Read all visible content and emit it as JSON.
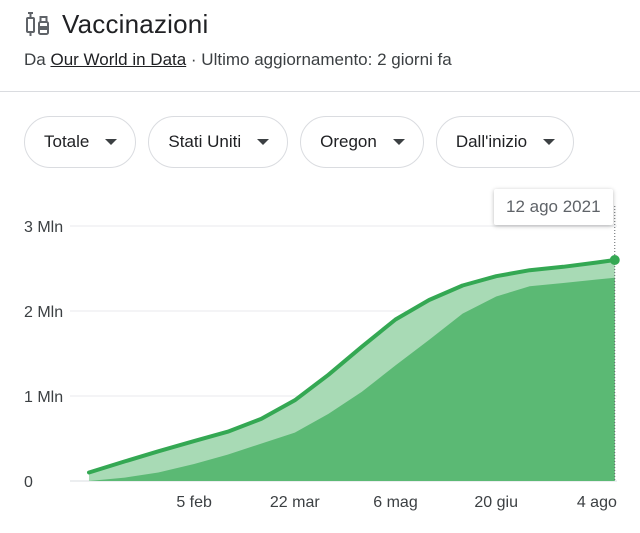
{
  "header": {
    "title": "Vaccinazioni",
    "source_prefix": "Da ",
    "source_link": "Our World in Data",
    "updated": " · Ultimo aggiornamento: 2 giorni fa",
    "icon": "syringe-vial-icon"
  },
  "filters": [
    {
      "label": "Totale",
      "icon": "dropdown-caret-icon"
    },
    {
      "label": "Stati Uniti",
      "icon": "dropdown-caret-icon"
    },
    {
      "label": "Oregon",
      "icon": "dropdown-caret-icon"
    },
    {
      "label": "Dall'inizio",
      "icon": "dropdown-caret-icon"
    }
  ],
  "tooltip": {
    "date": "12 ago 2021"
  },
  "colors": {
    "line": "#34a853",
    "light_area": "#a8dab5",
    "dark_area": "#5bb974",
    "grid": "#e8eaed"
  },
  "chart_data": {
    "type": "area",
    "y_ticks": [
      {
        "value": 0,
        "label": "0"
      },
      {
        "value": 1000000,
        "label": "1 Mln"
      },
      {
        "value": 2000000,
        "label": "2 Mln"
      },
      {
        "value": 3000000,
        "label": "3 Mln"
      }
    ],
    "x_ticks": [
      {
        "date": "2021-02-05",
        "label": "5 feb"
      },
      {
        "date": "2021-03-22",
        "label": "22 mar"
      },
      {
        "date": "2021-05-06",
        "label": "6 mag"
      },
      {
        "date": "2021-06-20",
        "label": "20 giu"
      },
      {
        "date": "2021-08-04",
        "label": "4 ago"
      }
    ],
    "ylim": [
      0,
      3000000
    ],
    "xlim": [
      "2020-12-16",
      "2021-08-13"
    ],
    "grid": true,
    "series": [
      {
        "x": [
          "2020-12-20",
          "2021-01-05",
          "2021-01-20",
          "2021-02-05",
          "2021-02-20",
          "2021-03-07",
          "2021-03-22",
          "2021-04-06",
          "2021-04-21",
          "2021-05-06",
          "2021-05-21",
          "2021-06-05",
          "2021-06-20",
          "2021-07-05",
          "2021-07-20",
          "2021-08-04",
          "2021-08-12"
        ],
        "y": [
          100000,
          230000,
          350000,
          470000,
          580000,
          730000,
          950000,
          1250000,
          1580000,
          1900000,
          2130000,
          2300000,
          2410000,
          2480000,
          2520000,
          2570000,
          2600000
        ]
      },
      {
        "x": [
          "2020-12-20",
          "2021-01-05",
          "2021-01-20",
          "2021-02-05",
          "2021-02-20",
          "2021-03-07",
          "2021-03-22",
          "2021-04-06",
          "2021-04-21",
          "2021-05-06",
          "2021-05-21",
          "2021-06-05",
          "2021-06-20",
          "2021-07-05",
          "2021-07-20",
          "2021-08-04",
          "2021-08-12"
        ],
        "y": [
          0,
          40000,
          100000,
          200000,
          310000,
          440000,
          570000,
          790000,
          1050000,
          1360000,
          1660000,
          1970000,
          2170000,
          2290000,
          2330000,
          2370000,
          2390000
        ]
      }
    ]
  }
}
